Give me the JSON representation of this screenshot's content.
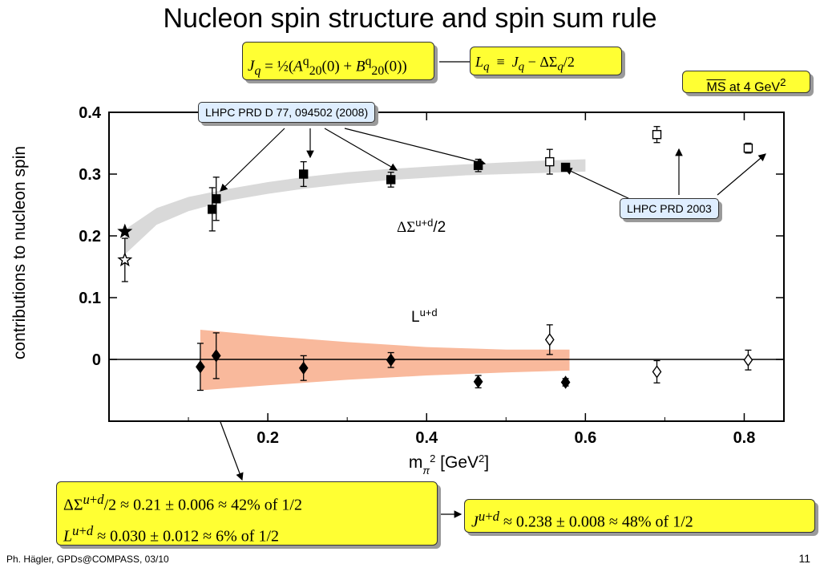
{
  "slide": {
    "title": "Nucleon spin structure and spin sum rule",
    "footer_left": "Ph. Hägler, GPDs@COMPASS, 03/10",
    "page_number": "11"
  },
  "formulas": {
    "jq_definition": "J_q = ½(A^q_20(0) + B^q_20(0))",
    "lq_definition": "L_q ≡ J_q − ΔΣ_q/2",
    "scheme": "MS at 4 GeV²",
    "result_delta_sigma": "ΔΣ^(u+d)/2 ≈ 0.21 ± 0.006 ≈ 42% of 1/2",
    "result_l": "L^(u+d) ≈ 0.030 ± 0.012 ≈ 6% of 1/2",
    "result_j": "J^(u+d) ≈ 0.238 ± 0.008 ≈ 48% of 1/2"
  },
  "callouts": {
    "lhpc_2008": "LHPC PRD D 77, 094502 (2008)",
    "lhpc_2003": "LHPC PRD 2003"
  },
  "colors": {
    "highlight": "#ffff33",
    "callout_bg": "#dfeeff",
    "band_spin": "#d9d9d9",
    "band_orbital": "#f9b99c"
  },
  "chart_data": {
    "type": "scatter",
    "xlabel": "m_π² [GeV²]",
    "ylabel": "contributions to nucleon spin",
    "xlim": [
      0.0,
      0.85
    ],
    "ylim": [
      -0.1,
      0.4
    ],
    "xticks": [
      0.2,
      0.4,
      0.6,
      0.8
    ],
    "yticks": [
      0.4,
      0.3,
      0.2,
      0.1,
      0
    ],
    "grid": false,
    "annotations": [
      "ΔΣ^(u+d)/2",
      "L^(u+d)"
    ],
    "series": [
      {
        "marker": "filled-square",
        "points": [
          {
            "x": 0.13,
            "y": 0.243,
            "err": 0.035
          },
          {
            "x": 0.135,
            "y": 0.26,
            "err": 0.035
          },
          {
            "x": 0.245,
            "y": 0.3,
            "err": 0.02
          },
          {
            "x": 0.355,
            "y": 0.291,
            "err": 0.012
          },
          {
            "x": 0.465,
            "y": 0.314,
            "err": 0.01
          },
          {
            "x": 0.575,
            "y": 0.311,
            "err": 0.006
          }
        ]
      },
      {
        "marker": "open-square",
        "points": [
          {
            "x": 0.555,
            "y": 0.32,
            "err": 0.02
          },
          {
            "x": 0.69,
            "y": 0.364,
            "err": 0.013
          },
          {
            "x": 0.805,
            "y": 0.342,
            "err": 0.008
          }
        ]
      },
      {
        "marker": "filled-star",
        "points": [
          {
            "x": 0.02,
            "y": 0.207,
            "err": 0.0
          }
        ]
      },
      {
        "marker": "open-star",
        "points": [
          {
            "x": 0.02,
            "y": 0.161,
            "err": 0.035
          }
        ]
      },
      {
        "marker": "filled-diamond",
        "points": [
          {
            "x": 0.115,
            "y": -0.012,
            "err": 0.038
          },
          {
            "x": 0.135,
            "y": 0.006,
            "err": 0.037
          },
          {
            "x": 0.245,
            "y": -0.014,
            "err": 0.02
          },
          {
            "x": 0.355,
            "y": -0.001,
            "err": 0.012
          },
          {
            "x": 0.465,
            "y": -0.036,
            "err": 0.01
          },
          {
            "x": 0.575,
            "y": -0.037,
            "err": 0.006
          }
        ]
      },
      {
        "marker": "open-diamond",
        "points": [
          {
            "x": 0.555,
            "y": 0.032,
            "err": 0.024
          },
          {
            "x": 0.69,
            "y": -0.02,
            "err": 0.018
          },
          {
            "x": 0.805,
            "y": -0.001,
            "err": 0.016
          }
        ]
      }
    ],
    "bands": [
      {
        "label": "ΔΣ^(u+d)/2",
        "color": "#d9d9d9",
        "x": [
          0.02,
          0.06,
          0.1,
          0.15,
          0.2,
          0.25,
          0.3,
          0.35,
          0.4,
          0.45,
          0.5,
          0.55,
          0.6
        ],
        "lower": [
          0.17,
          0.218,
          0.24,
          0.257,
          0.268,
          0.277,
          0.284,
          0.29,
          0.294,
          0.298,
          0.3,
          0.302,
          0.304
        ],
        "upper": [
          0.21,
          0.245,
          0.263,
          0.276,
          0.287,
          0.296,
          0.303,
          0.308,
          0.312,
          0.316,
          0.319,
          0.322,
          0.324
        ]
      },
      {
        "label": "L^(u+d)",
        "color": "#f9b99c",
        "x": [
          0.115,
          0.2,
          0.3,
          0.4,
          0.5,
          0.58
        ],
        "lower": [
          -0.05,
          -0.042,
          -0.033,
          -0.026,
          -0.021,
          -0.018
        ],
        "upper": [
          0.048,
          0.038,
          0.028,
          0.02,
          0.016,
          0.016
        ]
      }
    ]
  }
}
